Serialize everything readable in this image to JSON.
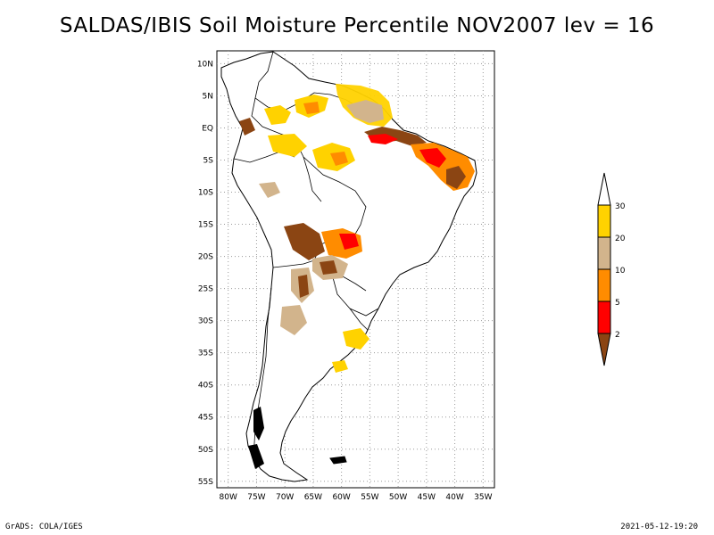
{
  "title": "SALDAS/IBIS Soil Moisture Percentile NOV2007 lev = 16",
  "map": {
    "region": "South America",
    "lat_range": [
      -56,
      12
    ],
    "lon_range": [
      -82,
      -33
    ],
    "lat_ticks": [
      "10N",
      "5N",
      "EQ",
      "5S",
      "10S",
      "15S",
      "20S",
      "25S",
      "30S",
      "35S",
      "40S",
      "45S",
      "50S",
      "55S"
    ],
    "lon_ticks": [
      "80W",
      "75W",
      "70W",
      "65W",
      "60W",
      "55W",
      "50W",
      "45W",
      "40W",
      "35W"
    ]
  },
  "legend": {
    "labels": [
      "30",
      "20",
      "10",
      "5",
      "2"
    ],
    "colors": {
      "above_30": "#ffffff",
      "20_30": "#ffd200",
      "10_20": "#d2b48c",
      "5_10": "#ff8c00",
      "2_5": "#ff0000",
      "below_2": "#8b4513"
    }
  },
  "footer": {
    "left": "GrADS: COLA/IGES",
    "right": "2021-05-12-19:20"
  }
}
